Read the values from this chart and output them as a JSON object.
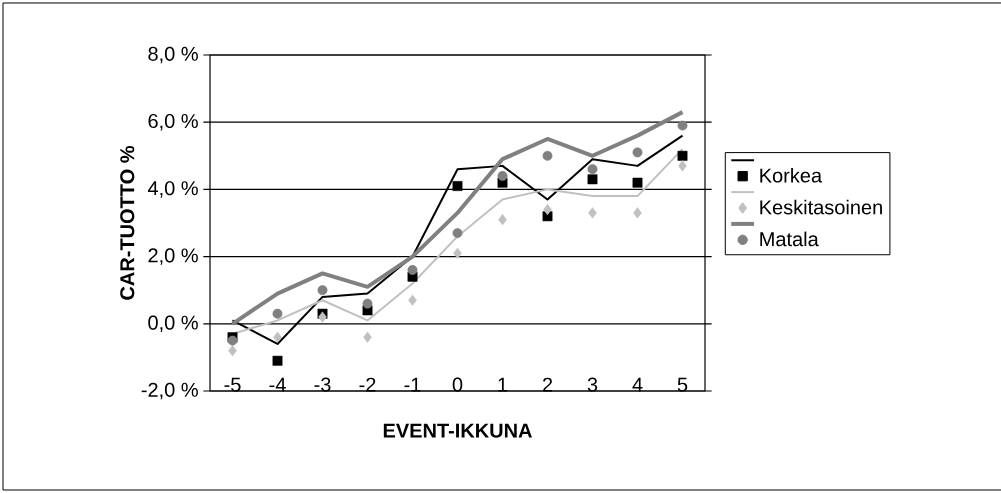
{
  "chart_data": {
    "type": "line",
    "xlabel": "EVENT-IKKUNA",
    "ylabel": "CAR-TUOTTO %",
    "categories": [
      "-5",
      "-4",
      "-3",
      "-2",
      "-1",
      "0",
      "1",
      "2",
      "3",
      "4",
      "5"
    ],
    "series": [
      {
        "type": "line",
        "color": "#000000",
        "values": [
          0.1,
          -0.6,
          0.8,
          0.9,
          2.0,
          4.6,
          4.7,
          3.7,
          4.9,
          4.7,
          5.6
        ]
      },
      {
        "type": "scatter",
        "name": "Korkea",
        "marker": "square",
        "color": "#000000",
        "values": [
          -0.4,
          -1.1,
          0.3,
          0.4,
          1.4,
          4.1,
          4.2,
          3.2,
          4.3,
          4.2,
          5.0
        ]
      },
      {
        "type": "line",
        "color": "#c0c0c0",
        "values": [
          -0.3,
          0.1,
          0.7,
          0.1,
          1.2,
          2.6,
          3.7,
          4.0,
          3.8,
          3.8,
          5.2
        ]
      },
      {
        "type": "scatter",
        "name": "Keskitasoinen",
        "marker": "diamond",
        "color": "#c0c0c0",
        "values": [
          -0.8,
          -0.4,
          0.2,
          -0.4,
          0.7,
          2.1,
          3.1,
          3.4,
          3.3,
          3.3,
          4.7
        ]
      },
      {
        "type": "line",
        "color": "#808080",
        "values": [
          0.0,
          0.9,
          1.5,
          1.1,
          2.0,
          3.3,
          4.9,
          5.5,
          5.0,
          5.6,
          6.3
        ]
      },
      {
        "type": "scatter",
        "name": "Matala",
        "marker": "circle",
        "color": "#808080",
        "values": [
          -0.5,
          0.3,
          1.0,
          0.6,
          1.6,
          2.7,
          4.4,
          5.0,
          4.6,
          5.1,
          5.9
        ]
      }
    ],
    "ylim": [
      -2,
      8
    ],
    "yticks": [
      {
        "value": -2,
        "label": "-2,0 %"
      },
      {
        "value": 0,
        "label": "0,0 %"
      },
      {
        "value": 2,
        "label": "2,0 %"
      },
      {
        "value": 4,
        "label": "4,0 %"
      },
      {
        "value": 6,
        "label": "6,0 %"
      },
      {
        "value": 8,
        "label": "8,0 %"
      }
    ],
    "grid": "y",
    "legend": "right"
  }
}
